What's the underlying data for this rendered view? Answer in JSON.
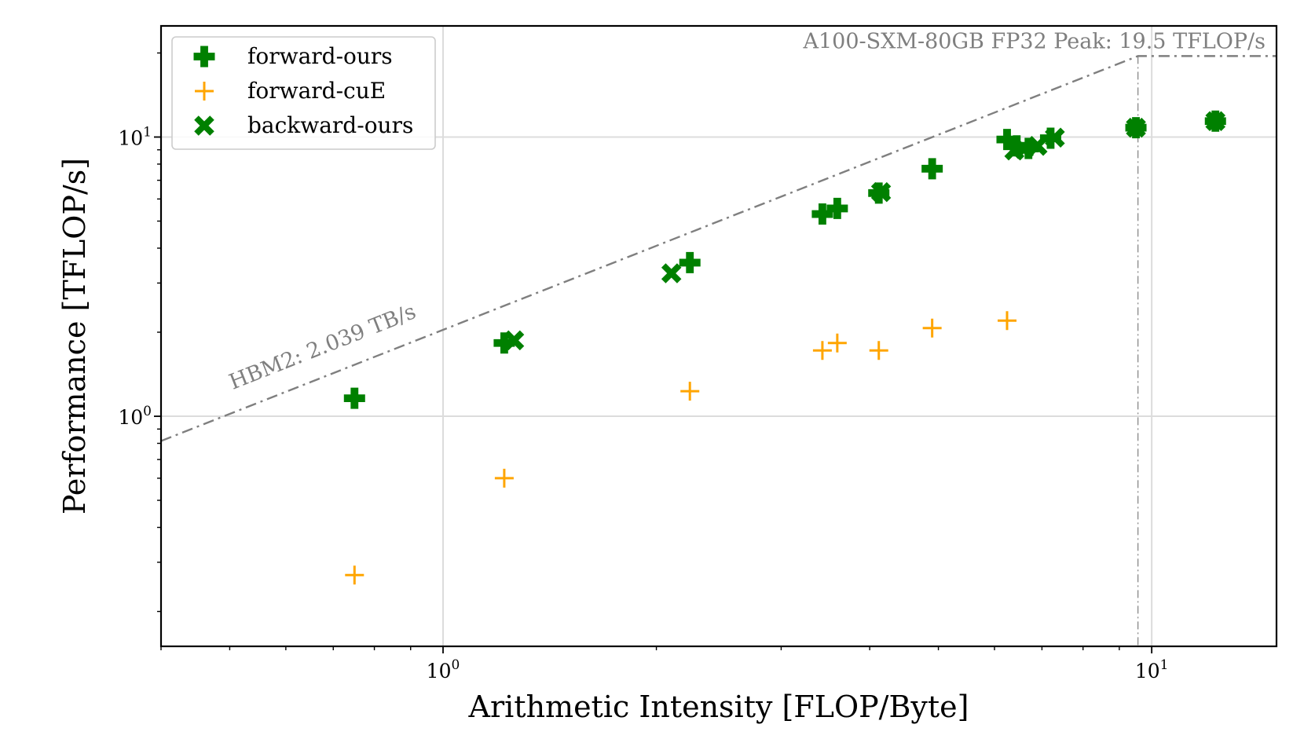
{
  "chart_data": {
    "type": "scatter",
    "x_scale": "log",
    "y_scale": "log",
    "xlabel": "Arithmetic Intensity [FLOP/Byte]",
    "ylabel": "Performance [TFLOP/s]",
    "xlim": [
      0.4,
      15
    ],
    "ylim": [
      0.15,
      25
    ],
    "x_ticks": [
      {
        "value": 1,
        "base": "10",
        "exp": "0"
      },
      {
        "value": 10,
        "base": "10",
        "exp": "1"
      }
    ],
    "y_ticks": [
      {
        "value": 1,
        "base": "10",
        "exp": "0"
      },
      {
        "value": 10,
        "base": "10",
        "exp": "1"
      }
    ],
    "grid": true,
    "legend_position": "top-left",
    "series": [
      {
        "name": "forward-ours",
        "marker": "plus-filled",
        "color": "#008000",
        "points": [
          [
            0.75,
            1.16
          ],
          [
            1.22,
            1.83
          ],
          [
            2.23,
            3.55
          ],
          [
            3.43,
            5.3
          ],
          [
            3.6,
            5.55
          ],
          [
            4.12,
            6.3
          ],
          [
            4.9,
            7.7
          ],
          [
            6.25,
            9.8
          ],
          [
            6.45,
            9.3
          ],
          [
            6.7,
            9.1
          ],
          [
            7.2,
            9.9
          ],
          [
            9.5,
            10.8
          ],
          [
            12.3,
            11.4
          ]
        ]
      },
      {
        "name": "forward-cuE",
        "marker": "plus-thin",
        "color": "#ffa500",
        "points": [
          [
            0.75,
            0.27
          ],
          [
            1.22,
            0.6
          ],
          [
            2.23,
            1.23
          ],
          [
            3.43,
            1.72
          ],
          [
            3.6,
            1.83
          ],
          [
            4.12,
            1.72
          ],
          [
            4.9,
            2.07
          ],
          [
            6.25,
            2.2
          ]
        ]
      },
      {
        "name": "backward-ours",
        "marker": "x-filled",
        "color": "#008000",
        "points": [
          [
            1.26,
            1.87
          ],
          [
            2.1,
            3.25
          ],
          [
            4.15,
            6.35
          ],
          [
            6.4,
            8.95
          ],
          [
            6.6,
            9.05
          ],
          [
            6.9,
            9.3
          ],
          [
            7.3,
            9.95
          ],
          [
            9.5,
            10.8
          ],
          [
            12.3,
            11.4
          ]
        ]
      }
    ],
    "roofline": {
      "bandwidth_label": "HBM2: 2.039 TB/s",
      "peak_label": "A100-SXM-80GB FP32 Peak: 19.5 TFLOP/s",
      "bandwidth": 2.039,
      "peak": 19.5
    }
  },
  "colors": {
    "roofline": "#7f7f7f",
    "grid": "#dcdcdc"
  }
}
